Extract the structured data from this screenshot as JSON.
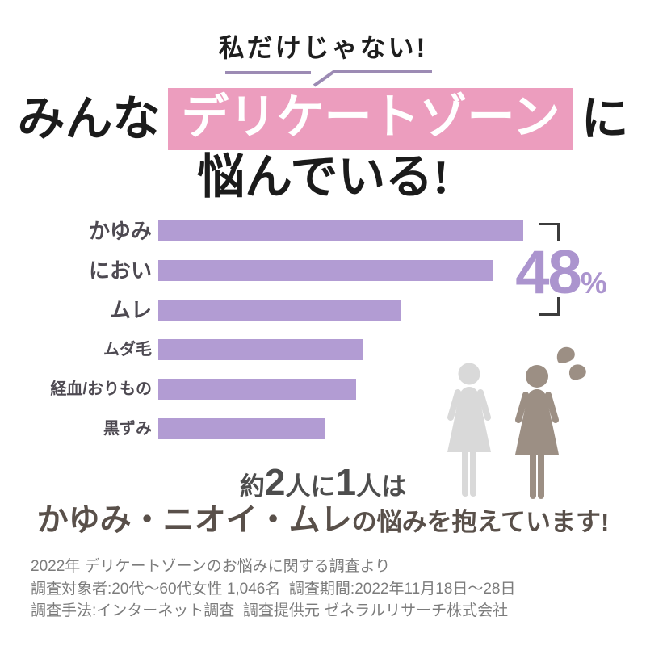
{
  "badge": {
    "text": "私だけじゃない!"
  },
  "title": {
    "pre": "みんな",
    "highlight": "デリケートゾーン",
    "post": "に",
    "line2": "悩んでいる!"
  },
  "chart_data": {
    "type": "bar",
    "orientation": "horizontal",
    "categories": [
      "かゆみ",
      "におい",
      "ムレ",
      "ムダ毛",
      "経血/おりもの",
      "黒ずみ"
    ],
    "values": [
      48,
      44,
      32,
      27,
      26,
      22
    ],
    "unit": "%",
    "xlim": [
      0,
      50
    ],
    "grid": false,
    "legend": false,
    "bar_color": "#B29CD3",
    "annotation_label": "48%",
    "annotation_scope": [
      "かゆみ",
      "におい",
      "ムレ"
    ],
    "title": "みんなデリケートゾーンに悩んでいる!"
  },
  "stat": {
    "number": "48",
    "sign": "%"
  },
  "message": {
    "l1_seg1": "約",
    "l1_num1": "2",
    "l1_seg2": "人に",
    "l1_num2": "1",
    "l1_seg3": "人は",
    "l2_strong": "かゆみ・ニオイ・ムレ",
    "l2_rest": "の悩みを抱えています!"
  },
  "footer": {
    "line1": "2022年 デリケートゾーンのお悩みに関する調査より",
    "line2": "調査対象者:20代〜60代女性 1,046名  調査期間:2022年11月18日〜28日",
    "line3": "調査手法:インターネット調査  調査提供元 ゼネラルリサーチ株式会社"
  },
  "icons": {
    "woman_plain": "woman-pictogram",
    "woman_worried": "woman-pictogram-with-sweat-drops"
  },
  "colors": {
    "pink": "#EC9DBE",
    "bar": "#B29CD3",
    "stat": "#AB94CE",
    "deco_line": "#9C8BB4",
    "woman_light": "#D9D9D9",
    "woman_dark": "#9C8F84",
    "bracket": "#3C3C3C"
  }
}
